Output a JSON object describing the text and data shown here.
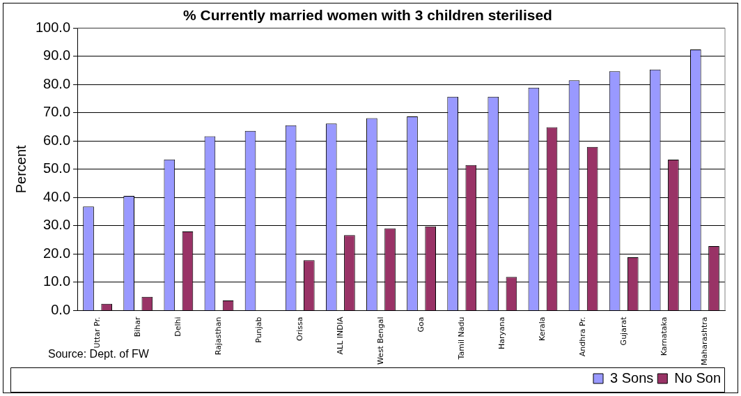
{
  "chart_data": {
    "type": "bar",
    "title": "% Currently married women with 3 children sterilised",
    "ylabel": "Percent",
    "categories": [
      "Uttar Pr.",
      "Bihar",
      "Delhi",
      "Rajasthan",
      "Punjab",
      "Orissa",
      "ALL INDIA",
      "West Bengal",
      "Goa",
      "Tamil Nadu",
      "Haryana",
      "Kerala",
      "Andhra Pr.",
      "Gujarat",
      "Karnataka",
      "Maharashtra"
    ],
    "series": [
      {
        "name": "3 Sons",
        "color": "#9999ff",
        "values": [
          36.8,
          40.6,
          53.5,
          61.7,
          63.6,
          65.6,
          66.2,
          68.1,
          68.7,
          75.7,
          75.7,
          78.9,
          81.5,
          84.7,
          85.3,
          92.4
        ]
      },
      {
        "name": "No Son",
        "color": "#993366",
        "values": [
          2.4,
          4.9,
          28.0,
          3.6,
          null,
          17.8,
          26.7,
          29.1,
          29.8,
          51.5,
          11.9,
          64.9,
          57.9,
          18.9,
          53.4,
          22.8
        ]
      }
    ],
    "ylim": [
      0,
      100
    ],
    "yticks": [
      {
        "value": 0,
        "label": "0.0"
      },
      {
        "value": 10,
        "label": "10.0"
      },
      {
        "value": 20,
        "label": "20.0"
      },
      {
        "value": 30,
        "label": "30.0"
      },
      {
        "value": 40,
        "label": "40.0"
      },
      {
        "value": 50,
        "label": "50.0"
      },
      {
        "value": 60,
        "label": "60.0"
      },
      {
        "value": 70,
        "label": "70.0"
      },
      {
        "value": 80,
        "label": "80.0"
      },
      {
        "value": 90,
        "label": "90.0"
      },
      {
        "value": 100,
        "label": "100.0"
      }
    ],
    "grid": "y",
    "legend": "bottom right",
    "annotations": [
      "Source: Dept. of FW"
    ]
  }
}
